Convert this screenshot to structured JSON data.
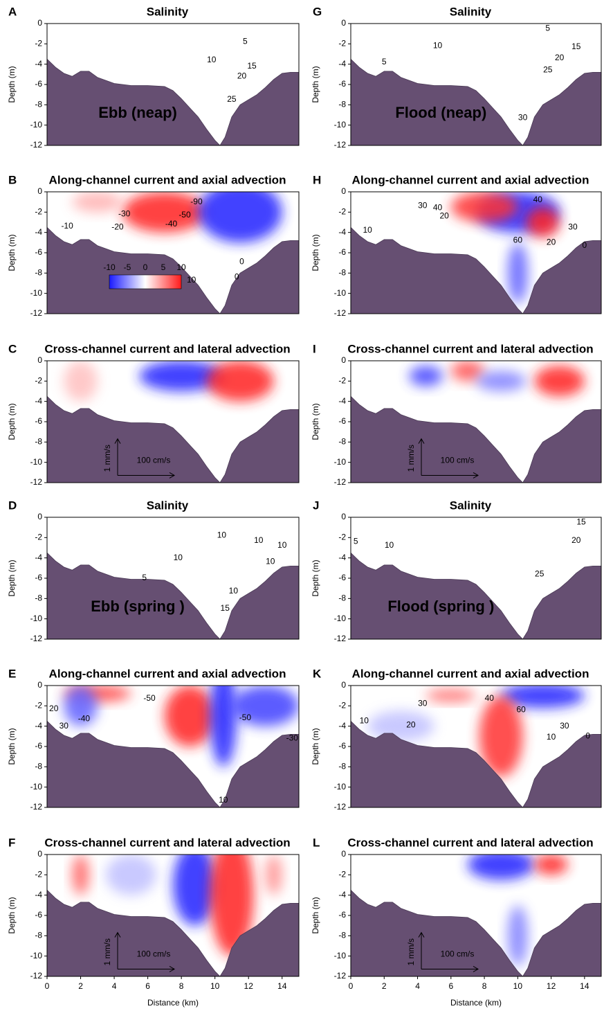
{
  "chart_data": [
    {
      "type": "section",
      "panel": "A",
      "title": "Salinity",
      "ylabel": "Depth (m)",
      "annotation": "Ebb (neap)",
      "xlim": [
        0,
        15
      ],
      "ylim": [
        -12,
        0
      ],
      "yticks": [
        0,
        -2,
        -4,
        -6,
        -8,
        -10,
        -12
      ],
      "x": [
        0,
        0.5,
        1,
        1.5,
        2,
        2.5,
        3,
        4,
        5,
        6,
        7,
        7.5,
        8,
        8.5,
        9,
        9.5,
        10,
        10.3,
        10.6,
        11,
        11.5,
        12,
        12.5,
        13,
        13.5,
        14,
        14.5,
        15
      ],
      "values": [
        -3.5,
        -4.3,
        -4.9,
        -5.2,
        -4.7,
        -4.7,
        -5.3,
        -5.9,
        -6.1,
        -6.1,
        -6.2,
        -6.6,
        -7.4,
        -8.3,
        -9.2,
        -10.4,
        -11.5,
        -12,
        -11.2,
        -9.2,
        -8,
        -7.5,
        -7,
        -6.3,
        -5.5,
        -4.9,
        -4.8,
        -4.8
      ],
      "contour_labels": [
        {
          "value": 5,
          "x": 11.8,
          "y": -1.8
        },
        {
          "value": 10,
          "x": 9.8,
          "y": -3.6
        },
        {
          "value": 15,
          "x": 12.2,
          "y": -4.2
        },
        {
          "value": 20,
          "x": 11.6,
          "y": -5.2
        },
        {
          "value": 25,
          "x": 11.0,
          "y": -7.5
        }
      ]
    },
    {
      "type": "section",
      "panel": "B",
      "title": "Along-channel current and axial advection",
      "ylabel": "Depth (m)",
      "xlim": [
        0,
        15
      ],
      "ylim": [
        -12,
        0
      ],
      "yticks": [
        0,
        -2,
        -4,
        -6,
        -8,
        -10,
        -12
      ],
      "x": [
        0,
        0.5,
        1,
        1.5,
        2,
        2.5,
        3,
        4,
        5,
        6,
        7,
        7.5,
        8,
        8.5,
        9,
        9.5,
        10,
        10.3,
        10.6,
        11,
        11.5,
        12,
        12.5,
        13,
        13.5,
        14,
        14.5,
        15
      ],
      "values": [
        -3.5,
        -4.3,
        -4.9,
        -5.2,
        -4.7,
        -4.7,
        -5.3,
        -5.9,
        -6.1,
        -6.1,
        -6.2,
        -6.6,
        -7.4,
        -8.3,
        -9.2,
        -10.4,
        -11.5,
        -12,
        -11.2,
        -9.2,
        -8,
        -7.5,
        -7,
        -6.3,
        -5.5,
        -4.9,
        -4.8,
        -4.8
      ],
      "colorbar_ticks": [
        -10,
        -5,
        0,
        5,
        10
      ],
      "contour_labels": [
        {
          "value": -10,
          "x": 1.2,
          "y": -3.4
        },
        {
          "value": -20,
          "x": 4.2,
          "y": -3.5
        },
        {
          "value": -30,
          "x": 4.6,
          "y": -2.2
        },
        {
          "value": -40,
          "x": 7.4,
          "y": -3.2
        },
        {
          "value": -50,
          "x": 8.2,
          "y": -2.3
        },
        {
          "value": -90,
          "x": 8.9,
          "y": -1.0
        },
        {
          "value": 10,
          "x": 8.6,
          "y": -8.7
        },
        {
          "value": 0,
          "x": 11.6,
          "y": -6.9
        },
        {
          "value": 0,
          "x": 11.3,
          "y": -8.4
        }
      ]
    },
    {
      "type": "section",
      "panel": "C",
      "title": "Cross-channel current and lateral advection",
      "ylabel": "Depth (m)",
      "xlim": [
        0,
        15
      ],
      "ylim": [
        -12,
        0
      ],
      "yticks": [
        0,
        -2,
        -4,
        -6,
        -8,
        -10,
        -12
      ],
      "x": [
        0,
        0.5,
        1,
        1.5,
        2,
        2.5,
        3,
        4,
        5,
        6,
        7,
        7.5,
        8,
        8.5,
        9,
        9.5,
        10,
        10.3,
        10.6,
        11,
        11.5,
        12,
        12.5,
        13,
        13.5,
        14,
        14.5,
        15
      ],
      "values": [
        -3.5,
        -4.3,
        -4.9,
        -5.2,
        -4.7,
        -4.7,
        -5.3,
        -5.9,
        -6.1,
        -6.1,
        -6.2,
        -6.6,
        -7.4,
        -8.3,
        -9.2,
        -10.4,
        -11.5,
        -12,
        -11.2,
        -9.2,
        -8,
        -7.5,
        -7,
        -6.3,
        -5.5,
        -4.9,
        -4.8,
        -4.8
      ],
      "scale_labels": [
        "1 mm/s",
        "100 cm/s"
      ]
    },
    {
      "type": "section",
      "panel": "D",
      "title": "Salinity",
      "ylabel": "Depth (m)",
      "annotation": "Ebb (spring )",
      "xlim": [
        0,
        15
      ],
      "ylim": [
        -12,
        0
      ],
      "yticks": [
        0,
        -2,
        -4,
        -6,
        -8,
        -10,
        -12
      ],
      "x": [
        0,
        0.5,
        1,
        1.5,
        2,
        2.5,
        3,
        4,
        5,
        6,
        7,
        7.5,
        8,
        8.5,
        9,
        9.5,
        10,
        10.3,
        10.6,
        11,
        11.5,
        12,
        12.5,
        13,
        13.5,
        14,
        14.5,
        15
      ],
      "values": [
        -3.5,
        -4.3,
        -4.9,
        -5.2,
        -4.7,
        -4.7,
        -5.3,
        -5.9,
        -6.1,
        -6.1,
        -6.2,
        -6.6,
        -7.4,
        -8.3,
        -9.2,
        -10.4,
        -11.5,
        -12,
        -11.2,
        -9.2,
        -8,
        -7.5,
        -7,
        -6.3,
        -5.5,
        -4.9,
        -4.8,
        -4.8
      ],
      "contour_labels": [
        {
          "value": 5,
          "x": 5.8,
          "y": -6.0
        },
        {
          "value": 10,
          "x": 7.8,
          "y": -4.0
        },
        {
          "value": 10,
          "x": 10.4,
          "y": -1.8
        },
        {
          "value": 10,
          "x": 12.6,
          "y": -2.3
        },
        {
          "value": 10,
          "x": 14.0,
          "y": -2.8
        },
        {
          "value": 10,
          "x": 13.3,
          "y": -4.4
        },
        {
          "value": 10,
          "x": 11.1,
          "y": -7.3
        },
        {
          "value": 15,
          "x": 10.6,
          "y": -9.0
        }
      ]
    },
    {
      "type": "section",
      "panel": "E",
      "title": "Along-channel current and axial advection",
      "ylabel": "Depth (m)",
      "xlim": [
        0,
        15
      ],
      "ylim": [
        -12,
        0
      ],
      "yticks": [
        0,
        -2,
        -4,
        -6,
        -8,
        -10,
        -12
      ],
      "x": [
        0,
        0.5,
        1,
        1.5,
        2,
        2.5,
        3,
        4,
        5,
        6,
        7,
        7.5,
        8,
        8.5,
        9,
        9.5,
        10,
        10.3,
        10.6,
        11,
        11.5,
        12,
        12.5,
        13,
        13.5,
        14,
        14.5,
        15
      ],
      "values": [
        -3.5,
        -4.3,
        -4.9,
        -5.2,
        -4.7,
        -4.7,
        -5.3,
        -5.9,
        -6.1,
        -6.1,
        -6.2,
        -6.6,
        -7.4,
        -8.3,
        -9.2,
        -10.4,
        -11.5,
        -12,
        -11.2,
        -9.2,
        -8,
        -7.5,
        -7,
        -6.3,
        -5.5,
        -4.9,
        -4.8,
        -4.8
      ],
      "contour_labels": [
        {
          "value": 20,
          "x": 0.4,
          "y": -2.3
        },
        {
          "value": 30,
          "x": 1.0,
          "y": -4.0
        },
        {
          "value": -40,
          "x": 2.2,
          "y": -3.3
        },
        {
          "value": -50,
          "x": 6.1,
          "y": -1.3
        },
        {
          "value": -50,
          "x": 11.8,
          "y": -3.2
        },
        {
          "value": -30,
          "x": 14.6,
          "y": -5.2
        },
        {
          "value": 10,
          "x": 10.5,
          "y": -11.3
        }
      ]
    },
    {
      "type": "section",
      "panel": "F",
      "title": "Cross-channel current and lateral advection",
      "ylabel": "Depth (m)",
      "xlabel": "Distance (km)",
      "xlim": [
        0,
        15
      ],
      "ylim": [
        -12,
        0
      ],
      "xticks": [
        0,
        2,
        4,
        6,
        8,
        10,
        12,
        14
      ],
      "yticks": [
        0,
        -2,
        -4,
        -6,
        -8,
        -10,
        -12
      ],
      "x": [
        0,
        0.5,
        1,
        1.5,
        2,
        2.5,
        3,
        4,
        5,
        6,
        7,
        7.5,
        8,
        8.5,
        9,
        9.5,
        10,
        10.3,
        10.6,
        11,
        11.5,
        12,
        12.5,
        13,
        13.5,
        14,
        14.5,
        15
      ],
      "values": [
        -3.5,
        -4.3,
        -4.9,
        -5.2,
        -4.7,
        -4.7,
        -5.3,
        -5.9,
        -6.1,
        -6.1,
        -6.2,
        -6.6,
        -7.4,
        -8.3,
        -9.2,
        -10.4,
        -11.5,
        -12,
        -11.2,
        -9.2,
        -8,
        -7.5,
        -7,
        -6.3,
        -5.5,
        -4.9,
        -4.8,
        -4.8
      ],
      "scale_labels": [
        "1 mm/s",
        "100 cm/s"
      ]
    },
    {
      "type": "section",
      "panel": "G",
      "title": "Salinity",
      "ylabel": "Depth (m)",
      "annotation": "Flood (neap)",
      "xlim": [
        0,
        15
      ],
      "ylim": [
        -12,
        0
      ],
      "yticks": [
        0,
        -2,
        -4,
        -6,
        -8,
        -10,
        -12
      ],
      "x": [
        0,
        0.5,
        1,
        1.5,
        2,
        2.5,
        3,
        4,
        5,
        6,
        7,
        7.5,
        8,
        8.5,
        9,
        9.5,
        10,
        10.3,
        10.6,
        11,
        11.5,
        12,
        12.5,
        13,
        13.5,
        14,
        14.5,
        15
      ],
      "values": [
        -3.5,
        -4.3,
        -4.9,
        -5.2,
        -4.7,
        -4.7,
        -5.3,
        -5.9,
        -6.1,
        -6.1,
        -6.2,
        -6.6,
        -7.4,
        -8.3,
        -9.2,
        -10.4,
        -11.5,
        -12,
        -11.2,
        -9.2,
        -8,
        -7.5,
        -7,
        -6.3,
        -5.5,
        -4.9,
        -4.8,
        -4.8
      ],
      "contour_labels": [
        {
          "value": 5,
          "x": 11.8,
          "y": -0.5
        },
        {
          "value": 10,
          "x": 5.2,
          "y": -2.2
        },
        {
          "value": 15,
          "x": 13.5,
          "y": -2.3
        },
        {
          "value": 20,
          "x": 12.5,
          "y": -3.4
        },
        {
          "value": 25,
          "x": 11.8,
          "y": -4.6
        },
        {
          "value": 30,
          "x": 10.3,
          "y": -9.3
        },
        {
          "value": 5,
          "x": 2.0,
          "y": -3.8
        }
      ]
    },
    {
      "type": "section",
      "panel": "H",
      "title": "Along-channel current and axial advection",
      "ylabel": "Depth (m)",
      "xlim": [
        0,
        15
      ],
      "ylim": [
        -12,
        0
      ],
      "yticks": [
        0,
        -2,
        -4,
        -6,
        -8,
        -10,
        -12
      ],
      "x": [
        0,
        0.5,
        1,
        1.5,
        2,
        2.5,
        3,
        4,
        5,
        6,
        7,
        7.5,
        8,
        8.5,
        9,
        9.5,
        10,
        10.3,
        10.6,
        11,
        11.5,
        12,
        12.5,
        13,
        13.5,
        14,
        14.5,
        15
      ],
      "values": [
        -3.5,
        -4.3,
        -4.9,
        -5.2,
        -4.7,
        -4.7,
        -5.3,
        -5.9,
        -6.1,
        -6.1,
        -6.2,
        -6.6,
        -7.4,
        -8.3,
        -9.2,
        -10.4,
        -11.5,
        -12,
        -11.2,
        -9.2,
        -8,
        -7.5,
        -7,
        -6.3,
        -5.5,
        -4.9,
        -4.8,
        -4.8
      ],
      "contour_labels": [
        {
          "value": 10,
          "x": 1.0,
          "y": -3.8
        },
        {
          "value": 20,
          "x": 5.6,
          "y": -2.4
        },
        {
          "value": 30,
          "x": 4.3,
          "y": -1.4
        },
        {
          "value": 40,
          "x": 5.2,
          "y": -1.6
        },
        {
          "value": 40,
          "x": 11.2,
          "y": -0.8
        },
        {
          "value": 30,
          "x": 13.3,
          "y": -3.5
        },
        {
          "value": 60,
          "x": 10.0,
          "y": -4.8
        },
        {
          "value": 20,
          "x": 12.0,
          "y": -5.0
        },
        {
          "value": 0,
          "x": 14.0,
          "y": -5.3
        }
      ]
    },
    {
      "type": "section",
      "panel": "I",
      "title": "Cross-channel current and lateral advection",
      "ylabel": "Depth (m)",
      "xlim": [
        0,
        15
      ],
      "ylim": [
        -12,
        0
      ],
      "yticks": [
        0,
        -2,
        -4,
        -6,
        -8,
        -10,
        -12
      ],
      "x": [
        0,
        0.5,
        1,
        1.5,
        2,
        2.5,
        3,
        4,
        5,
        6,
        7,
        7.5,
        8,
        8.5,
        9,
        9.5,
        10,
        10.3,
        10.6,
        11,
        11.5,
        12,
        12.5,
        13,
        13.5,
        14,
        14.5,
        15
      ],
      "values": [
        -3.5,
        -4.3,
        -4.9,
        -5.2,
        -4.7,
        -4.7,
        -5.3,
        -5.9,
        -6.1,
        -6.1,
        -6.2,
        -6.6,
        -7.4,
        -8.3,
        -9.2,
        -10.4,
        -11.5,
        -12,
        -11.2,
        -9.2,
        -8,
        -7.5,
        -7,
        -6.3,
        -5.5,
        -4.9,
        -4.8,
        -4.8
      ],
      "scale_labels": [
        "1 mm/s",
        "100 cm/s"
      ]
    },
    {
      "type": "section",
      "panel": "J",
      "title": "Salinity",
      "ylabel": "Depth (m)",
      "annotation": "Flood (spring )",
      "xlim": [
        0,
        15
      ],
      "ylim": [
        -12,
        0
      ],
      "yticks": [
        0,
        -2,
        -4,
        -6,
        -8,
        -10,
        -12
      ],
      "x": [
        0,
        0.5,
        1,
        1.5,
        2,
        2.5,
        3,
        4,
        5,
        6,
        7,
        7.5,
        8,
        8.5,
        9,
        9.5,
        10,
        10.3,
        10.6,
        11,
        11.5,
        12,
        12.5,
        13,
        13.5,
        14,
        14.5,
        15
      ],
      "values": [
        -3.5,
        -4.3,
        -4.9,
        -5.2,
        -4.7,
        -4.7,
        -5.3,
        -5.9,
        -6.1,
        -6.1,
        -6.2,
        -6.6,
        -7.4,
        -8.3,
        -9.2,
        -10.4,
        -11.5,
        -12,
        -11.2,
        -9.2,
        -8,
        -7.5,
        -7,
        -6.3,
        -5.5,
        -4.9,
        -4.8,
        -4.8
      ],
      "contour_labels": [
        {
          "value": 5,
          "x": 0.3,
          "y": -2.4
        },
        {
          "value": 10,
          "x": 2.3,
          "y": -2.8
        },
        {
          "value": 15,
          "x": 13.8,
          "y": -0.5
        },
        {
          "value": 20,
          "x": 13.5,
          "y": -2.3
        },
        {
          "value": 25,
          "x": 11.3,
          "y": -5.6
        }
      ]
    },
    {
      "type": "section",
      "panel": "K",
      "title": "Along-channel current and axial advection",
      "ylabel": "Depth (m)",
      "xlim": [
        0,
        15
      ],
      "ylim": [
        -12,
        0
      ],
      "yticks": [
        0,
        -2,
        -4,
        -6,
        -8,
        -10,
        -12
      ],
      "x": [
        0,
        0.5,
        1,
        1.5,
        2,
        2.5,
        3,
        4,
        5,
        6,
        7,
        7.5,
        8,
        8.5,
        9,
        9.5,
        10,
        10.3,
        10.6,
        11,
        11.5,
        12,
        12.5,
        13,
        13.5,
        14,
        14.5,
        15
      ],
      "values": [
        -3.5,
        -4.3,
        -4.9,
        -5.2,
        -4.7,
        -4.7,
        -5.3,
        -5.9,
        -6.1,
        -6.1,
        -6.2,
        -6.6,
        -7.4,
        -8.3,
        -9.2,
        -10.4,
        -11.5,
        -12,
        -11.2,
        -9.2,
        -8,
        -7.5,
        -7,
        -6.3,
        -5.5,
        -4.9,
        -4.8,
        -4.8
      ],
      "contour_labels": [
        {
          "value": 10,
          "x": 0.8,
          "y": -3.5
        },
        {
          "value": 20,
          "x": 3.6,
          "y": -3.9
        },
        {
          "value": 30,
          "x": 4.3,
          "y": -1.8
        },
        {
          "value": 40,
          "x": 8.3,
          "y": -1.3
        },
        {
          "value": 60,
          "x": 10.2,
          "y": -2.4
        },
        {
          "value": 30,
          "x": 12.8,
          "y": -4.0
        },
        {
          "value": 10,
          "x": 12.0,
          "y": -5.1
        },
        {
          "value": 0,
          "x": 14.2,
          "y": -5.0
        }
      ]
    },
    {
      "type": "section",
      "panel": "L",
      "title": "Cross-channel current and lateral advection",
      "ylabel": "Depth (m)",
      "xlabel": "Distance (km)",
      "xlim": [
        0,
        15
      ],
      "ylim": [
        -12,
        0
      ],
      "xticks": [
        0,
        2,
        4,
        6,
        8,
        10,
        12,
        14
      ],
      "yticks": [
        0,
        -2,
        -4,
        -6,
        -8,
        -10,
        -12
      ],
      "x": [
        0,
        0.5,
        1,
        1.5,
        2,
        2.5,
        3,
        4,
        5,
        6,
        7,
        7.5,
        8,
        8.5,
        9,
        9.5,
        10,
        10.3,
        10.6,
        11,
        11.5,
        12,
        12.5,
        13,
        13.5,
        14,
        14.5,
        15
      ],
      "values": [
        -3.5,
        -4.3,
        -4.9,
        -5.2,
        -4.7,
        -4.7,
        -5.3,
        -5.9,
        -6.1,
        -6.1,
        -6.2,
        -6.6,
        -7.4,
        -8.3,
        -9.2,
        -10.4,
        -11.5,
        -12,
        -11.2,
        -9.2,
        -8,
        -7.5,
        -7,
        -6.3,
        -5.5,
        -4.9,
        -4.8,
        -4.8
      ],
      "scale_labels": [
        "1 mm/s",
        "100 cm/s"
      ]
    }
  ]
}
